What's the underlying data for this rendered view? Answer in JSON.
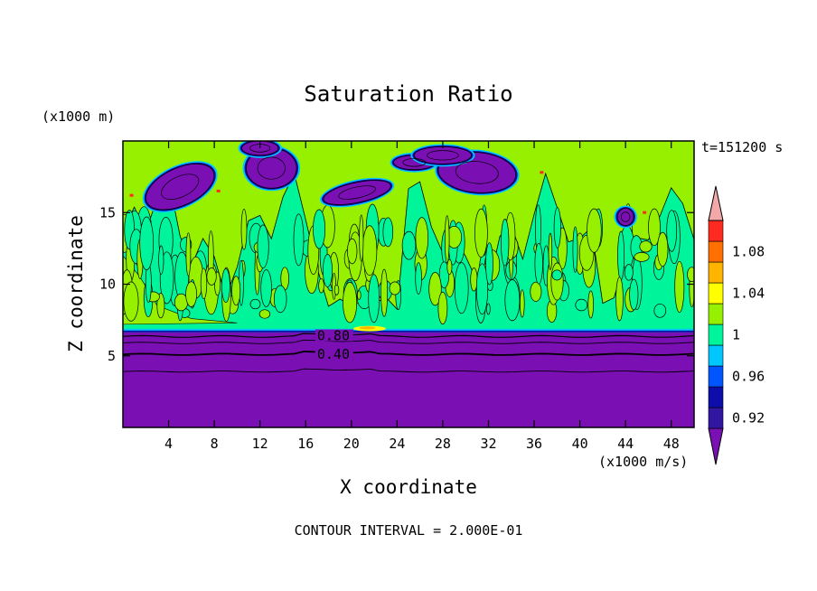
{
  "chart_data": {
    "type": "heatmap",
    "title": "Saturation Ratio",
    "xlabel": "X coordinate",
    "ylabel": "Z coordinate",
    "x_unit": "(x1000 m/s)",
    "y_unit": "(x1000 m)",
    "time_label": "t=151200 s",
    "footer": "CONTOUR INTERVAL = 2.000E-01",
    "xlim": [
      0,
      50
    ],
    "ylim": [
      0,
      20
    ],
    "x_ticks": [
      4,
      8,
      12,
      16,
      20,
      24,
      28,
      32,
      36,
      40,
      44,
      48
    ],
    "y_ticks": [
      5,
      10,
      15
    ],
    "contour_labels": [
      {
        "text": "0.80",
        "x": 17.0,
        "z": 6.4
      },
      {
        "text": "0.40",
        "x": 17.0,
        "z": 5.1
      }
    ],
    "colorbar": {
      "levels": [
        0.92,
        0.94,
        0.96,
        0.98,
        1.0,
        1.02,
        1.04,
        1.06,
        1.08
      ],
      "labels": [
        "1.08",
        "1.04",
        "1",
        "0.96",
        "0.92"
      ],
      "colors": [
        "#7a0fb4",
        "#3016a0",
        "#0d0daa",
        "#0055ff",
        "#00c8ff",
        "#00f59a",
        "#96f000",
        "#ffff00",
        "#ffb400",
        "#ff7000",
        "#ff2a20",
        "#f2a8a8"
      ]
    },
    "colors": {
      "dry": "#7a0fb4",
      "deep_blue": "#0d0daa",
      "cyan": "#00c8ff",
      "near_saturation": "#00f59a",
      "slightly_supersaturated": "#96f000",
      "yellow": "#ffff00",
      "orange": "#ffb400",
      "red": "#ff2a20"
    },
    "regions": {
      "dry_layer_top_z": 6.7,
      "cloud_top_z": 20,
      "supersaturated_patches": [
        {
          "x": 6,
          "z": 17.3
        },
        {
          "x": 13,
          "z": 18.0
        },
        {
          "x": 21,
          "z": 16.5
        },
        {
          "x": 31,
          "z": 17.9
        },
        {
          "x": 44,
          "z": 14.8
        }
      ]
    }
  }
}
